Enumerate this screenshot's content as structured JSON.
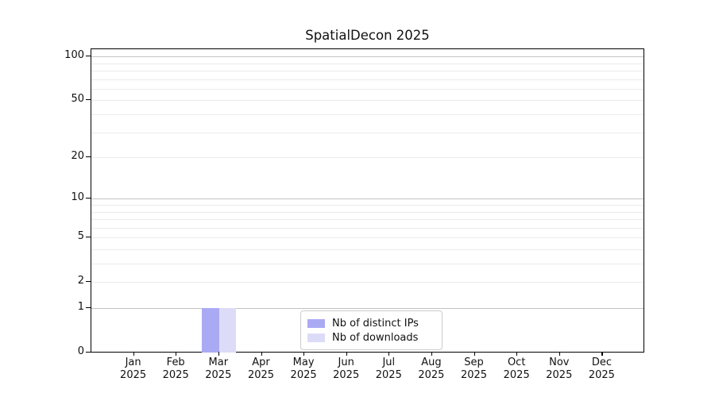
{
  "chart_data": {
    "type": "bar",
    "title": "SpatialDecon 2025",
    "categories": [
      "Jan 2025",
      "Feb 2025",
      "Mar 2025",
      "Apr 2025",
      "May 2025",
      "Jun 2025",
      "Jul 2025",
      "Aug 2025",
      "Sep 2025",
      "Oct 2025",
      "Nov 2025",
      "Dec 2025"
    ],
    "x_months": [
      "Jan",
      "Feb",
      "Mar",
      "Apr",
      "May",
      "Jun",
      "Jul",
      "Aug",
      "Sep",
      "Oct",
      "Nov",
      "Dec"
    ],
    "x_year": "2025",
    "series": [
      {
        "name": "Nb of distinct IPs",
        "color": "#aaaaf4",
        "values": [
          0,
          0,
          1,
          0,
          0,
          0,
          0,
          0,
          0,
          0,
          0,
          0
        ]
      },
      {
        "name": "Nb of downloads",
        "color": "#dcdcf8",
        "values": [
          0,
          0,
          1,
          0,
          0,
          0,
          0,
          0,
          0,
          0,
          0,
          0
        ]
      }
    ],
    "yaxis": {
      "scale": "log1p",
      "labeled_ticks": [
        0,
        1,
        2,
        5,
        10,
        20,
        50,
        100
      ],
      "minor_ticks": [
        3,
        4,
        6,
        7,
        8,
        9,
        30,
        40,
        60,
        70,
        80,
        90
      ],
      "top_value": 112,
      "grid": "horizontal",
      "major_grid_color": "#c3c3c3",
      "minor_grid_color": "#ebebeb"
    },
    "legend_position": "lower center",
    "background_color": "#ffffff",
    "spine_color": "#000000"
  }
}
